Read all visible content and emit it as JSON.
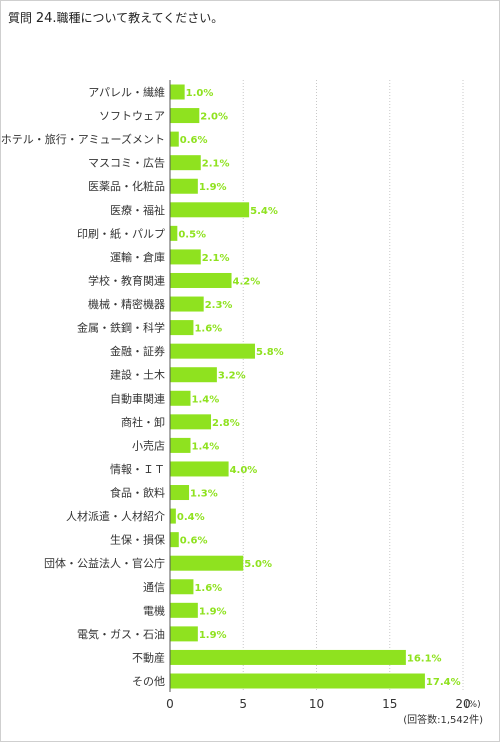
{
  "question": {
    "prefix": "質問",
    "number": "24.",
    "text": "職種について教えてください。"
  },
  "colors": {
    "bar": "#8fe21f",
    "value_label": "#8fe21f"
  },
  "chart_data": {
    "type": "bar",
    "orientation": "horizontal",
    "categories": [
      "アパレル・繊維",
      "ソフトウェア",
      "ホテル・旅行・アミューズメント",
      "マスコミ・広告",
      "医薬品・化粧品",
      "医療・福祉",
      "印刷・紙・パルプ",
      "運輸・倉庫",
      "学校・教育関連",
      "機械・精密機器",
      "金属・鉄鋼・科学",
      "金融・証券",
      "建設・土木",
      "自動車関連",
      "商社・卸",
      "小売店",
      "情報・ＩＴ",
      "食品・飲料",
      "人材派遣・人材紹介",
      "生保・損保",
      "団体・公益法人・官公庁",
      "通信",
      "電機",
      "電気・ガス・石油",
      "不動産",
      "その他"
    ],
    "values": [
      1.0,
      2.0,
      0.6,
      2.1,
      1.9,
      5.4,
      0.5,
      2.1,
      4.2,
      2.3,
      1.6,
      5.8,
      3.2,
      1.4,
      2.8,
      1.4,
      4.0,
      1.3,
      0.4,
      0.6,
      5.0,
      1.6,
      1.9,
      1.9,
      16.1,
      17.4
    ],
    "value_labels": [
      "1.0%",
      "2.0%",
      "0.6%",
      "2.1%",
      "1.9%",
      "5.4%",
      "0.5%",
      "2.1%",
      "4.2%",
      "2.3%",
      "1.6%",
      "5.8%",
      "3.2%",
      "1.4%",
      "2.8%",
      "1.4%",
      "4.0%",
      "1.3%",
      "0.4%",
      "0.6%",
      "5.0%",
      "1.6%",
      "1.9%",
      "1.9%",
      "16.1%",
      "17.4%"
    ],
    "xlim": [
      0,
      20
    ],
    "xticks": [
      0,
      5,
      10,
      15,
      20
    ],
    "unit": "(%)",
    "note": "(回答数:1,542件)",
    "grid": "vertical-dotted"
  }
}
